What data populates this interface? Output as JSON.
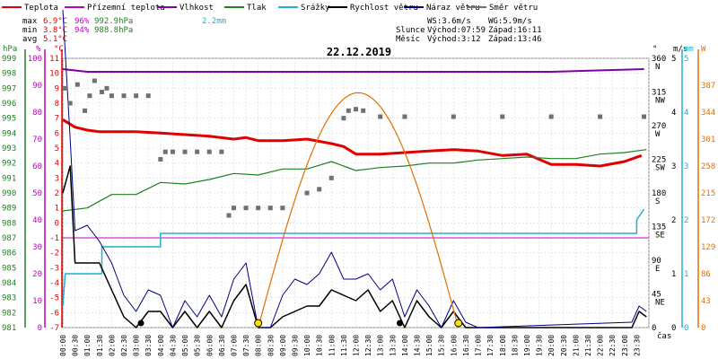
{
  "chart_data": {
    "type": "line",
    "title": "22.12.2019",
    "xlabel": "čas",
    "legend": [
      {
        "name": "Teplota",
        "color": "#e00000"
      },
      {
        "name": "Přízemní teplota",
        "color": "#c000c0"
      },
      {
        "name": "Vlhkost",
        "color": "#8000a0"
      },
      {
        "name": "Tlak",
        "color": "#208020"
      },
      {
        "name": "Srážky",
        "color": "#20b0d0"
      },
      {
        "name": "Rychlost větru",
        "color": "#000000"
      },
      {
        "name": "Náraz větru",
        "color": "#000080"
      },
      {
        "name": "Směr větru",
        "color": "#707070"
      }
    ],
    "stats": {
      "max_label": "max",
      "min_label": "min",
      "avg_label": "avg",
      "max_temp": "6.9°C",
      "max_hum": "96%",
      "max_press": "992.9hPa",
      "max_rain": "2.2mm",
      "min_temp": "3.8°C",
      "min_hum": "94%",
      "min_press": "988.8hPa",
      "avg_temp": "5.1°C"
    },
    "info": {
      "ws": "WS:3.6m/s",
      "wg": "WG:5.9m/s",
      "slunce": "Slunce",
      "sun_rise": "Východ:07:59",
      "sun_set": "Západ:16:11",
      "mesic": "Měsíc",
      "moon_rise": "Východ:3:12",
      "moon_set": "Západ:13:46"
    },
    "axes": {
      "pressure": {
        "unit": "hPa",
        "range": [
          981,
          999
        ],
        "color": "#208020"
      },
      "humidity": {
        "unit": "%",
        "range": [
          0,
          100
        ],
        "color": "#c000c0"
      },
      "temperature": {
        "unit": "°C",
        "range": [
          -7,
          11
        ],
        "color": "#e00000"
      },
      "wind_dir": {
        "unit": "°",
        "range": [
          0,
          360
        ],
        "ticks": [
          {
            "v": 360,
            "l": "360",
            "d": "N"
          },
          {
            "v": 315,
            "l": "315",
            "d": "NW"
          },
          {
            "v": 270,
            "l": "270",
            "d": "W"
          },
          {
            "v": 225,
            "l": "225",
            "d": "SW"
          },
          {
            "v": 180,
            "l": "180",
            "d": "S"
          },
          {
            "v": 135,
            "l": "135",
            "d": "SE"
          },
          {
            "v": 90,
            "l": "90",
            "d": "E"
          },
          {
            "v": 45,
            "l": "45",
            "d": "NE"
          },
          {
            "v": 0,
            "l": "0",
            "d": ""
          }
        ]
      },
      "wind_speed": {
        "unit": "m/s",
        "range": [
          0,
          5
        ],
        "color": "#000000"
      },
      "rain": {
        "unit": "mm",
        "range": [
          0,
          5
        ],
        "color": "#20b0d0"
      },
      "solar": {
        "unit": "W",
        "range": [
          0,
          430
        ],
        "ticks": [
          0,
          43,
          86,
          129,
          172,
          215,
          258,
          301,
          344,
          387
        ],
        "color": "#e07000"
      }
    },
    "x_ticks": [
      "00:00",
      "00:30",
      "01:00",
      "01:30",
      "02:00",
      "02:30",
      "03:00",
      "03:30",
      "04:00",
      "04:30",
      "05:00",
      "05:30",
      "06:00",
      "06:30",
      "07:00",
      "07:30",
      "08:00",
      "08:30",
      "09:00",
      "09:30",
      "10:00",
      "10:30",
      "11:00",
      "11:30",
      "12:00",
      "12:30",
      "13:00",
      "13:30",
      "14:00",
      "14:30",
      "15:00",
      "15:30",
      "16:00",
      "16:30",
      "17:00",
      "17:30",
      "18:00",
      "18:30",
      "19:00",
      "19:30",
      "20:00",
      "20:30",
      "21:00",
      "21:30",
      "22:00",
      "22:30",
      "23:00",
      "23:30"
    ],
    "series": [
      {
        "name": "Teplota",
        "x": [
          0,
          0.5,
          1,
          1.5,
          2,
          3,
          4,
          5,
          6,
          7,
          7.5,
          8,
          9,
          10,
          11,
          11.5,
          12,
          13,
          14,
          15,
          16,
          17,
          18,
          19,
          20,
          21,
          22,
          23,
          23.7
        ],
        "values": [
          6.9,
          6.4,
          6.2,
          6.1,
          6.1,
          6.1,
          6.0,
          5.9,
          5.8,
          5.6,
          5.7,
          5.5,
          5.5,
          5.6,
          5.3,
          5.1,
          4.6,
          4.6,
          4.7,
          4.8,
          4.9,
          4.8,
          4.5,
          4.6,
          3.9,
          3.9,
          3.8,
          4.1,
          4.5
        ]
      },
      {
        "name": "Přízemní teplota",
        "x": [
          0,
          23.99
        ],
        "values": [
          -1.0,
          -1.0
        ]
      },
      {
        "name": "Vlhkost",
        "x": [
          0,
          1,
          2,
          10,
          20,
          23.8
        ],
        "values": [
          96,
          95,
          95,
          95,
          95,
          96
        ]
      },
      {
        "name": "Tlak",
        "x": [
          0,
          1,
          2,
          3,
          4,
          5,
          6,
          7,
          8,
          9,
          10,
          11,
          12,
          13,
          14,
          15,
          16,
          17,
          18,
          19,
          20,
          21,
          22,
          23,
          23.9
        ],
        "values": [
          988.8,
          989.0,
          989.9,
          989.9,
          990.7,
          990.6,
          990.9,
          991.3,
          991.2,
          991.6,
          991.6,
          992.1,
          991.5,
          991.7,
          991.8,
          992.0,
          992.0,
          992.2,
          992.3,
          992.4,
          992.3,
          992.3,
          992.6,
          992.7,
          992.9
        ]
      },
      {
        "name": "Srážky",
        "x": [
          0,
          0.1,
          1.6,
          1.6,
          4.0,
          4.0,
          23.5,
          23.5,
          23.8
        ],
        "values": [
          0.4,
          1.0,
          1.0,
          1.5,
          1.5,
          1.75,
          1.75,
          2.0,
          2.2
        ]
      },
      {
        "name": "Rychlost větru",
        "x": [
          0,
          0.3,
          0.5,
          1,
          1.5,
          2,
          2.5,
          3,
          3.5,
          4,
          4.5,
          5,
          5.5,
          6,
          6.5,
          7,
          7.5,
          8,
          8.5,
          9,
          9.5,
          10,
          10.5,
          11,
          11.5,
          12,
          12.5,
          13,
          13.5,
          14,
          14.5,
          15,
          15.5,
          16,
          16.5,
          17,
          23.3,
          23.6,
          23.9
        ],
        "values": [
          2.5,
          3.0,
          1.2,
          1.2,
          1.2,
          0.7,
          0.2,
          0,
          0.3,
          0.3,
          0,
          0.3,
          0,
          0.3,
          0,
          0.5,
          0.8,
          0,
          0,
          0.2,
          0.3,
          0.4,
          0.4,
          0.7,
          0.6,
          0.5,
          0.7,
          0.3,
          0.5,
          0,
          0.5,
          0.2,
          0,
          0.3,
          0,
          0,
          0,
          0.3,
          0.2
        ]
      },
      {
        "name": "Náraz větru",
        "x": [
          0,
          0.3,
          0.5,
          1,
          1.5,
          2,
          2.5,
          3,
          3.5,
          4,
          4.5,
          5,
          5.5,
          6,
          6.5,
          7,
          7.5,
          8,
          8.5,
          9,
          9.5,
          10,
          10.5,
          11,
          11.5,
          12,
          12.5,
          13,
          13.5,
          14,
          14.5,
          15,
          15.5,
          16,
          16.5,
          17,
          23.3,
          23.6,
          23.9
        ],
        "values": [
          5.9,
          3.5,
          1.8,
          1.9,
          1.6,
          1.2,
          0.6,
          0.3,
          0.7,
          0.6,
          0,
          0.5,
          0.2,
          0.6,
          0.2,
          0.9,
          1.2,
          0,
          0,
          0.6,
          0.9,
          0.8,
          1.0,
          1.4,
          0.9,
          0.9,
          1.0,
          0.7,
          0.9,
          0.2,
          0.7,
          0.4,
          0,
          0.5,
          0.1,
          0,
          0.1,
          0.4,
          0.3
        ]
      },
      {
        "name": "Směr větru",
        "x": [
          0.1,
          0.3,
          0.6,
          0.9,
          1.1,
          1.3,
          1.6,
          1.8,
          2.0,
          2.5,
          3.0,
          3.5,
          4.0,
          4.2,
          4.5,
          5.0,
          5.5,
          6.0,
          6.5,
          6.8,
          7.0,
          7.5,
          8.0,
          8.5,
          9.0,
          10.0,
          10.5,
          11.0,
          11.5,
          11.7,
          12.0,
          12.3,
          13.0,
          14.0,
          16.0,
          18.0,
          20.0,
          22.0,
          23.8
        ],
        "values": [
          320,
          300,
          325,
          290,
          310,
          330,
          315,
          320,
          310,
          310,
          310,
          310,
          225,
          235,
          235,
          235,
          235,
          235,
          235,
          150,
          160,
          160,
          160,
          160,
          160,
          180,
          185,
          200,
          280,
          290,
          292,
          290,
          282,
          282,
          282,
          282,
          282,
          282,
          282
        ]
      },
      {
        "name": "Solar",
        "x": [
          8.0,
          9.0,
          10.0,
          11.0,
          12.0,
          13.0,
          14.0,
          15.0,
          16.2
        ],
        "values": [
          0,
          140,
          270,
          350,
          375,
          350,
          265,
          140,
          0
        ]
      }
    ],
    "markers": [
      {
        "x": 8.0,
        "type": "sun"
      },
      {
        "x": 16.2,
        "type": "sun"
      },
      {
        "x": 3.2,
        "type": "moon"
      },
      {
        "x": 13.8,
        "type": "moon"
      }
    ],
    "grid": true
  }
}
